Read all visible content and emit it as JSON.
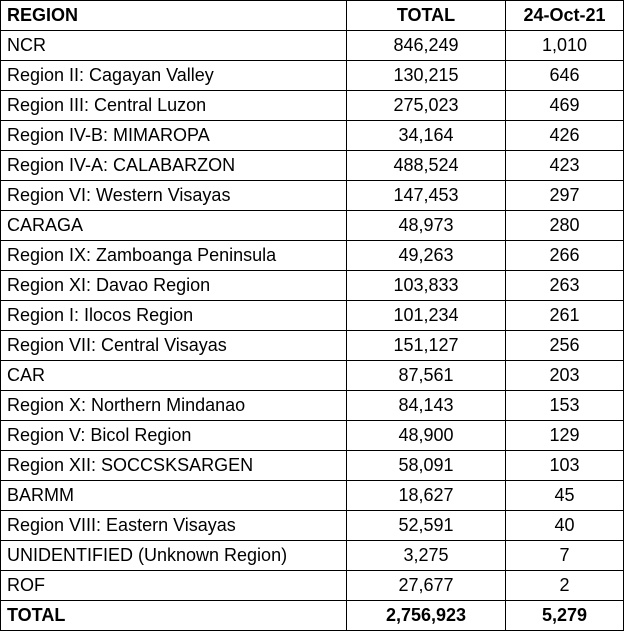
{
  "table": {
    "header": [
      "REGION",
      "TOTAL",
      "24-Oct-21"
    ],
    "rows": [
      [
        "NCR",
        "846,249",
        "1,010"
      ],
      [
        "Region II: Cagayan Valley",
        "130,215",
        "646"
      ],
      [
        "Region III: Central Luzon",
        "275,023",
        "469"
      ],
      [
        "Region IV-B: MIMAROPA",
        "34,164",
        "426"
      ],
      [
        "Region IV-A: CALABARZON",
        "488,524",
        "423"
      ],
      [
        "Region VI: Western Visayas",
        "147,453",
        "297"
      ],
      [
        "CARAGA",
        "48,973",
        "280"
      ],
      [
        "Region IX: Zamboanga Peninsula",
        "49,263",
        "266"
      ],
      [
        "Region XI: Davao Region",
        "103,833",
        "263"
      ],
      [
        "Region I: Ilocos Region",
        "101,234",
        "261"
      ],
      [
        "Region VII: Central Visayas",
        "151,127",
        "256"
      ],
      [
        "CAR",
        "87,561",
        "203"
      ],
      [
        "Region X: Northern Mindanao",
        "84,143",
        "153"
      ],
      [
        "Region V: Bicol Region",
        "48,900",
        "129"
      ],
      [
        "Region XII: SOCCSKSARGEN",
        "58,091",
        "103"
      ],
      [
        "BARMM",
        "18,627",
        "45"
      ],
      [
        "Region VIII: Eastern Visayas",
        "52,591",
        "40"
      ],
      [
        "UNIDENTIFIED (Unknown Region)",
        "3,275",
        "7"
      ],
      [
        "ROF",
        "27,677",
        "2"
      ]
    ],
    "total": [
      "TOTAL",
      "2,756,923",
      "5,279"
    ]
  }
}
